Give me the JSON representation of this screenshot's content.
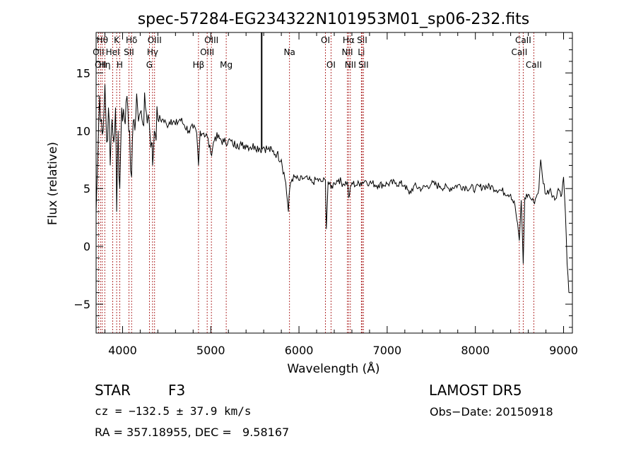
{
  "chart_data": {
    "type": "line",
    "title": "spec-57284-EG234322N101953M01_sp06-232.fits",
    "xlabel": "Wavelength (Å)",
    "ylabel": "Flux (relative)",
    "xlim": [
      3700,
      9100
    ],
    "ylim": [
      -7.5,
      18.5
    ],
    "x_ticks": [
      4000,
      5000,
      6000,
      7000,
      8000,
      9000
    ],
    "y_ticks": [
      -5,
      0,
      5,
      10,
      15
    ],
    "grid": false,
    "series": [
      {
        "x": [
          3700,
          3720,
          3740,
          3760,
          3780,
          3800,
          3820,
          3840,
          3860,
          3880,
          3900,
          3920,
          3933,
          3950,
          3968,
          3990,
          4020,
          4050,
          4080,
          4102,
          4130,
          4170,
          4220,
          4260,
          4300,
          4330,
          4340,
          4360,
          4400,
          4450,
          4500,
          4550,
          4600,
          4650,
          4700,
          4750,
          4800,
          4840,
          4861,
          4880,
          4920,
          4960,
          5000,
          5050,
          5100,
          5150,
          5200,
          5250,
          5300,
          5350,
          5400,
          5450,
          5500,
          5550,
          5580,
          5600,
          5650,
          5700,
          5750,
          5800,
          5850,
          5880,
          5895,
          5905,
          5920,
          5950,
          6000,
          6050,
          6100,
          6150,
          6200,
          6250,
          6300,
          6310,
          6330,
          6363,
          6400,
          6450,
          6500,
          6550,
          6563,
          6600,
          6650,
          6700,
          6750,
          6800,
          6900,
          7000,
          7100,
          7200,
          7250,
          7300,
          7400,
          7500,
          7600,
          7700,
          7800,
          7900,
          8000,
          8100,
          8200,
          8300,
          8400,
          8450,
          8498,
          8520,
          8542,
          8560,
          8600,
          8640,
          8662,
          8700,
          8720,
          8740,
          8760,
          8800,
          8850,
          8900,
          8940,
          8980,
          9000,
          9020,
          9040,
          9060
        ],
        "y": [
          3,
          8,
          13,
          11,
          10,
          14,
          9,
          12,
          7,
          11,
          9,
          12,
          3,
          10,
          5,
          12,
          11,
          13,
          10,
          6,
          11,
          12,
          11,
          12,
          11,
          9,
          7,
          10,
          11,
          11,
          10.5,
          11,
          10.5,
          11,
          10.5,
          10,
          10.2,
          9.8,
          7,
          10,
          9.8,
          9.5,
          8,
          9.5,
          9.3,
          9,
          9.2,
          8.8,
          8.9,
          8.7,
          8.8,
          8.6,
          8.7,
          8.5,
          8.4,
          8.6,
          8.4,
          8.2,
          8.0,
          7.5,
          5.5,
          3.0,
          5.0,
          5.5,
          5.8,
          6.0,
          5.7,
          5.9,
          5.8,
          5.5,
          5.8,
          5.6,
          5.7,
          1.5,
          5.6,
          5.0,
          5.5,
          5.8,
          5.4,
          5.6,
          4.2,
          5.5,
          5.3,
          5.5,
          5.7,
          5.5,
          5.3,
          5.4,
          5.5,
          5.3,
          4.5,
          5.2,
          5.0,
          5.4,
          5.2,
          5.0,
          5.3,
          5.1,
          5.0,
          5.2,
          5.1,
          4.8,
          4.5,
          3.5,
          0.5,
          4.0,
          -1.5,
          4.2,
          4.5,
          4.0,
          3.8,
          4.5,
          5.0,
          7.5,
          6.0,
          4.5,
          5.0,
          4.0,
          5.0,
          4.5,
          6.0,
          3.0,
          -1.5,
          -4.0
        ]
      }
    ],
    "emission_line_markers": [
      {
        "x": 3727,
        "label": "OII",
        "row": 2
      },
      {
        "x": 3750,
        "label": "OII",
        "row": 3
      },
      {
        "x": 3770,
        "label": "Hθ",
        "row": 1
      },
      {
        "x": 3798,
        "label": "Hη",
        "row": 3
      },
      {
        "x": 3889,
        "label": "HeI",
        "row": 2
      },
      {
        "x": 3933,
        "label": "K",
        "row": 1
      },
      {
        "x": 3968,
        "label": "H",
        "row": 3
      },
      {
        "x": 4072,
        "label": "SII",
        "row": 2
      },
      {
        "x": 4102,
        "label": "Hδ",
        "row": 1
      },
      {
        "x": 4304,
        "label": "G",
        "row": 3
      },
      {
        "x": 4340,
        "label": "Hγ",
        "row": 2
      },
      {
        "x": 4363,
        "label": "OIII",
        "row": 1
      },
      {
        "x": 4861,
        "label": "Hβ",
        "row": 3
      },
      {
        "x": 4959,
        "label": "OIII",
        "row": 2
      },
      {
        "x": 5007,
        "label": "OIII",
        "row": 1
      },
      {
        "x": 5175,
        "label": "Mg",
        "row": 3
      },
      {
        "x": 5893,
        "label": "Na",
        "row": 2
      },
      {
        "x": 6300,
        "label": "OI",
        "row": 1
      },
      {
        "x": 6363,
        "label": "OI",
        "row": 3
      },
      {
        "x": 6548,
        "label": "NII",
        "row": 2
      },
      {
        "x": 6563,
        "label": "Hα",
        "row": 1
      },
      {
        "x": 6583,
        "label": "NII",
        "row": 3
      },
      {
        "x": 6707,
        "label": "Li",
        "row": 2
      },
      {
        "x": 6716,
        "label": "SII",
        "row": 1
      },
      {
        "x": 6731,
        "label": "SII",
        "row": 3
      },
      {
        "x": 8498,
        "label": "CaII",
        "row": 2
      },
      {
        "x": 8542,
        "label": "CaII",
        "row": 1
      },
      {
        "x": 8662,
        "label": "CaII",
        "row": 3
      }
    ],
    "marker_color": "#a00000",
    "line_color": "#000000"
  },
  "info": {
    "object_class": "STAR",
    "subclass": "F3",
    "survey": "LAMOST DR5",
    "redshift_line": "cz = −132.5 ± 37.9 km/s",
    "obs_date": "Obs−Date: 20150918",
    "coords": "RA = 357.18955, DEC =   9.58167"
  }
}
